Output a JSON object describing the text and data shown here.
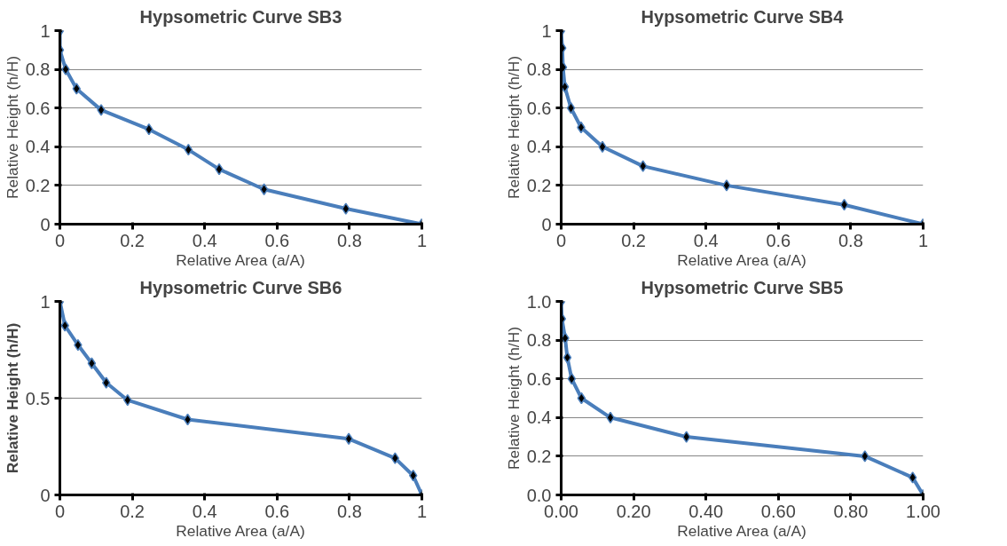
{
  "chart_data": [
    {
      "type": "line",
      "title": "Hypsometric Curve SB3",
      "xlabel": "Relative Area (a/A)",
      "ylabel": "Relative Height (h/H)",
      "xlim": [
        0,
        1
      ],
      "ylim": [
        0,
        1
      ],
      "xticks": [
        0,
        0.2,
        0.4,
        0.6,
        0.8,
        1
      ],
      "yticks": [
        0,
        0.2,
        0.4,
        0.6,
        0.8,
        1
      ],
      "grid": "y",
      "marker": "diamond",
      "line_style": "solid",
      "series": [
        {
          "color": "#4a7ebb",
          "x": [
            0,
            0,
            0.016,
            0.046,
            0.114,
            0.246,
            0.355,
            0.44,
            0.564,
            0.79,
            1
          ],
          "values": [
            1,
            0.9,
            0.8,
            0.7,
            0.59,
            0.49,
            0.385,
            0.284,
            0.18,
            0.08,
            0
          ]
        }
      ]
    },
    {
      "type": "line",
      "title": "Hypsometric Curve SB4",
      "xlabel": "Relative Area (a/A)",
      "ylabel": "Relative Height (h/H)",
      "xlim": [
        0,
        1
      ],
      "ylim": [
        0,
        1
      ],
      "xticks": [
        0,
        0.2,
        0.4,
        0.6,
        0.8,
        1
      ],
      "yticks": [
        0,
        0.2,
        0.4,
        0.6,
        0.8,
        1
      ],
      "grid": "y",
      "marker": "diamond",
      "line_style": "solid",
      "series": [
        {
          "color": "#4a7ebb",
          "x": [
            0,
            0.003,
            0.005,
            0.01,
            0.027,
            0.055,
            0.114,
            0.226,
            0.457,
            0.782,
            1
          ],
          "values": [
            1,
            0.91,
            0.81,
            0.71,
            0.6,
            0.5,
            0.4,
            0.3,
            0.2,
            0.1,
            0
          ]
        }
      ]
    },
    {
      "type": "line",
      "title": "Hypsometric Curve SB6",
      "xlabel": "Relative Area (a/A)",
      "ylabel": "Relative Height (h/H)",
      "xlim": [
        0,
        1
      ],
      "ylim": [
        0,
        1
      ],
      "xticks": [
        0,
        0.2,
        0.4,
        0.6,
        0.8,
        1
      ],
      "yticks": [
        0,
        0.5,
        1
      ],
      "grid": "y",
      "marker": "diamond",
      "line_style": "solid",
      "series": [
        {
          "color": "#4a7ebb",
          "x": [
            0,
            0.014,
            0.05,
            0.088,
            0.128,
            0.187,
            0.353,
            0.798,
            0.926,
            0.976,
            1
          ],
          "values": [
            1,
            0.875,
            0.775,
            0.68,
            0.58,
            0.49,
            0.39,
            0.29,
            0.19,
            0.1,
            0
          ]
        }
      ]
    },
    {
      "type": "line",
      "title": "Hypsometric Curve SB5",
      "xlabel": "Relative Area (a/A)",
      "ylabel": "Relative Height (h/H)",
      "xlim": [
        0,
        1
      ],
      "ylim": [
        0,
        1
      ],
      "xticks": [
        {
          "value": 0,
          "label": "0.00"
        },
        {
          "value": 0.2,
          "label": "0.20"
        },
        {
          "value": 0.4,
          "label": "0.40"
        },
        {
          "value": 0.6,
          "label": "0.60"
        },
        {
          "value": 0.8,
          "label": "0.80"
        },
        {
          "value": 1,
          "label": "1.00"
        }
      ],
      "yticks": [
        {
          "value": 0,
          "label": "0.0"
        },
        {
          "value": 0.2,
          "label": "0.2"
        },
        {
          "value": 0.4,
          "label": "0.4"
        },
        {
          "value": 0.6,
          "label": "0.6"
        },
        {
          "value": 0.8,
          "label": "0.8"
        },
        {
          "value": 1,
          "label": "1.0"
        }
      ],
      "grid": "y",
      "marker": "diamond",
      "line_style": "solid",
      "series": [
        {
          "color": "#4a7ebb",
          "x": [
            0,
            0.002,
            0.011,
            0.017,
            0.029,
            0.056,
            0.136,
            0.346,
            0.839,
            0.971,
            1
          ],
          "values": [
            1,
            0.91,
            0.81,
            0.71,
            0.6,
            0.5,
            0.4,
            0.3,
            0.2,
            0.09,
            0
          ]
        }
      ]
    }
  ]
}
